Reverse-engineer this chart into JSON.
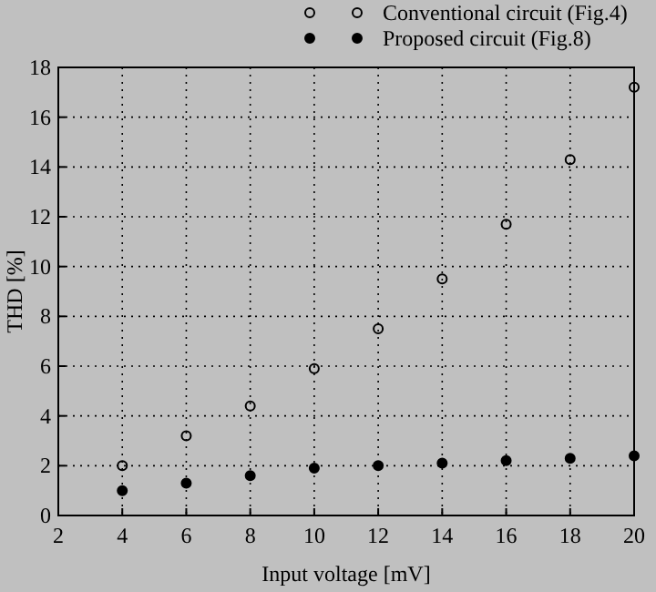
{
  "chart_data": {
    "type": "scatter",
    "xlabel": "Input voltage [mV]",
    "ylabel": "THD [%]",
    "x": [
      4,
      6,
      8,
      10,
      12,
      14,
      16,
      18,
      20
    ],
    "series": [
      {
        "name": "Conventional circuit (Fig.4)",
        "color": "#000000",
        "values": [
          2.0,
          3.2,
          4.4,
          5.9,
          7.5,
          9.5,
          11.7,
          14.3,
          17.2
        ]
      },
      {
        "name": "Proposed circuit (Fig.8)",
        "color": "#000000",
        "values": [
          1.0,
          1.3,
          1.6,
          1.9,
          2.0,
          2.1,
          2.2,
          2.3,
          2.4
        ]
      }
    ],
    "xlim": [
      2,
      20
    ],
    "xticks": [
      2,
      4,
      6,
      8,
      10,
      12,
      14,
      16,
      18,
      20
    ],
    "ylim": [
      0,
      18
    ],
    "yticks": [
      0,
      2,
      4,
      6,
      8,
      10,
      12,
      14,
      16,
      18
    ],
    "grid": true,
    "legend": "top",
    "marker": "circle"
  }
}
